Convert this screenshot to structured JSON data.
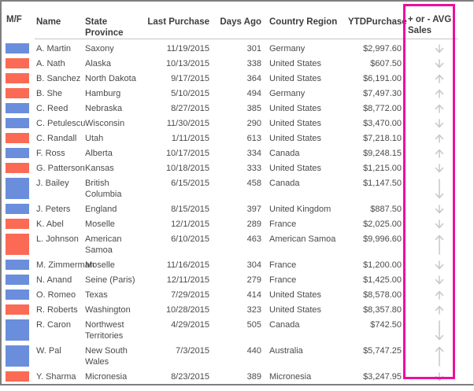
{
  "table": {
    "columns": [
      {
        "id": "mf",
        "label": "M/F"
      },
      {
        "id": "name",
        "label": "Name"
      },
      {
        "id": "state",
        "label": "State Province"
      },
      {
        "id": "last",
        "label": "Last Purchase"
      },
      {
        "id": "days",
        "label": "Days Ago"
      },
      {
        "id": "ctry",
        "label": "Country Region"
      },
      {
        "id": "ytd",
        "label": "YTDPurchase"
      },
      {
        "id": "trend",
        "label": "+ or - AVG Sales"
      }
    ],
    "rows": [
      {
        "bar": "blue",
        "name": "A. Martin",
        "state": "Saxony",
        "last_purchase": "11/19/2015",
        "days_ago": "301",
        "country": "Germany",
        "ytd": "$2,997.60",
        "trend": "down"
      },
      {
        "bar": "red",
        "name": "A. Nath",
        "state": "Alaska",
        "last_purchase": "10/13/2015",
        "days_ago": "338",
        "country": "United States",
        "ytd": "$607.50",
        "trend": "down"
      },
      {
        "bar": "red",
        "name": "B. Sanchez",
        "state": "North Dakota",
        "last_purchase": "9/17/2015",
        "days_ago": "364",
        "country": "United States",
        "ytd": "$6,191.00",
        "trend": "up"
      },
      {
        "bar": "red",
        "name": "B. She",
        "state": "Hamburg",
        "last_purchase": "5/10/2015",
        "days_ago": "494",
        "country": "Germany",
        "ytd": "$7,497.30",
        "trend": "up"
      },
      {
        "bar": "blue",
        "name": "C. Reed",
        "state": "Nebraska",
        "last_purchase": "8/27/2015",
        "days_ago": "385",
        "country": "United States",
        "ytd": "$8,772.00",
        "trend": "up"
      },
      {
        "bar": "blue",
        "name": "C. Petulescu",
        "state": "Wisconsin",
        "last_purchase": "11/30/2015",
        "days_ago": "290",
        "country": "United States",
        "ytd": "$3,470.00",
        "trend": "down"
      },
      {
        "bar": "red",
        "name": "C. Randall",
        "state": "Utah",
        "last_purchase": "1/11/2015",
        "days_ago": "613",
        "country": "United States",
        "ytd": "$7,218.10",
        "trend": "up"
      },
      {
        "bar": "blue",
        "name": "F. Ross",
        "state": "Alberta",
        "last_purchase": "10/17/2015",
        "days_ago": "334",
        "country": "Canada",
        "ytd": "$9,248.15",
        "trend": "up"
      },
      {
        "bar": "red",
        "name": "G. Patterson",
        "state": "Kansas",
        "last_purchase": "10/18/2015",
        "days_ago": "333",
        "country": "United States",
        "ytd": "$1,215.00",
        "trend": "down"
      },
      {
        "bar": "blue",
        "name": "J. Bailey",
        "state": "British Columbia",
        "last_purchase": "6/15/2015",
        "days_ago": "458",
        "country": "Canada",
        "ytd": "$1,147.50",
        "trend": "down"
      },
      {
        "bar": "blue",
        "name": "J. Peters",
        "state": "England",
        "last_purchase": "8/15/2015",
        "days_ago": "397",
        "country": "United Kingdom",
        "ytd": "$887.50",
        "trend": "down"
      },
      {
        "bar": "red",
        "name": "K. Abel",
        "state": "Moselle",
        "last_purchase": "12/1/2015",
        "days_ago": "289",
        "country": "France",
        "ytd": "$2,025.00",
        "trend": "down"
      },
      {
        "bar": "red",
        "name": "L. Johnson",
        "state": "American Samoa",
        "last_purchase": "6/10/2015",
        "days_ago": "463",
        "country": "American Samoa",
        "ytd": "$9,996.60",
        "trend": "up"
      },
      {
        "bar": "blue",
        "name": "M. Zimmerman",
        "state": "Moselle",
        "last_purchase": "11/16/2015",
        "days_ago": "304",
        "country": "France",
        "ytd": "$1,200.00",
        "trend": "down"
      },
      {
        "bar": "blue",
        "name": "N. Anand",
        "state": "Seine (Paris)",
        "last_purchase": "12/11/2015",
        "days_ago": "279",
        "country": "France",
        "ytd": "$1,425.00",
        "trend": "down"
      },
      {
        "bar": "blue",
        "name": "O. Romeo",
        "state": "Texas",
        "last_purchase": "7/29/2015",
        "days_ago": "414",
        "country": "United States",
        "ytd": "$8,578.00",
        "trend": "up"
      },
      {
        "bar": "red",
        "name": "R. Roberts",
        "state": "Washington",
        "last_purchase": "10/28/2015",
        "days_ago": "323",
        "country": "United States",
        "ytd": "$8,357.80",
        "trend": "up"
      },
      {
        "bar": "blue",
        "name": "R. Caron",
        "state": "Northwest Territories",
        "last_purchase": "4/29/2015",
        "days_ago": "505",
        "country": "Canada",
        "ytd": "$742.50",
        "trend": "down"
      },
      {
        "bar": "blue",
        "name": "W. Pal",
        "state": "New South Wales",
        "last_purchase": "7/3/2015",
        "days_ago": "440",
        "country": "Australia",
        "ytd": "$5,747.25",
        "trend": "up"
      },
      {
        "bar": "red",
        "name": "Y. Sharma",
        "state": "Micronesia",
        "last_purchase": "8/23/2015",
        "days_ago": "389",
        "country": "Micronesia",
        "ytd": "$3,247.95",
        "trend": "down"
      }
    ]
  },
  "colors": {
    "blue_bar": "#6a8edc",
    "red_bar": "#fb6a55",
    "arrow": "#c7c7c7",
    "highlight": "#ed0e9e"
  }
}
